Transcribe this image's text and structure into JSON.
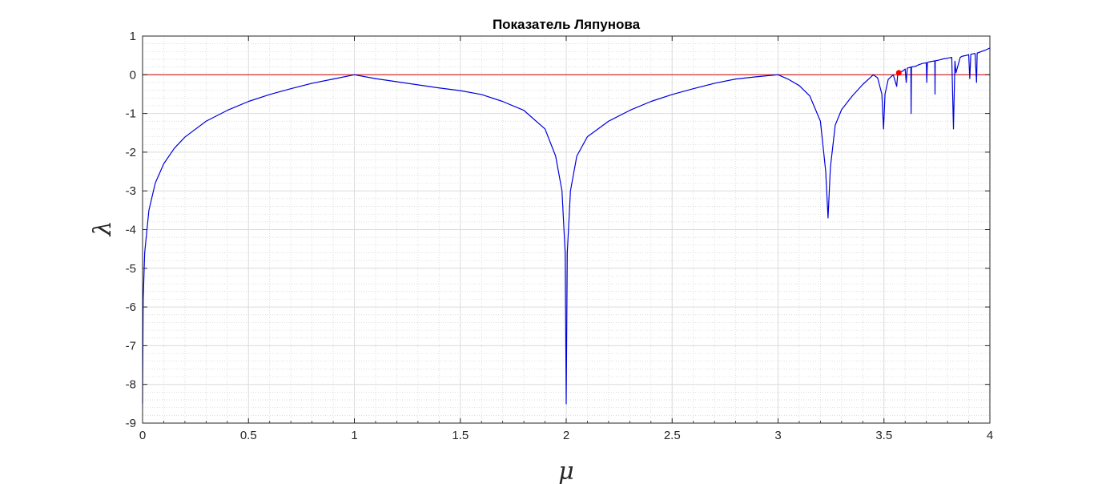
{
  "chart_data": {
    "type": "line",
    "title": "Показатель Ляпунова",
    "xlabel": "μ",
    "ylabel": "λ",
    "xlim": [
      0,
      4
    ],
    "ylim": [
      -9,
      1
    ],
    "xticks": [
      0,
      0.5,
      1,
      1.5,
      2,
      2.5,
      3,
      3.5,
      4
    ],
    "xtick_labels": [
      "0",
      "0.5",
      "1",
      "1.5",
      "2",
      "2.5",
      "3",
      "3.5",
      "4"
    ],
    "yticks": [
      1,
      0,
      -1,
      -2,
      -3,
      -4,
      -5,
      -6,
      -7,
      -8,
      -9
    ],
    "ytick_labels": [
      "1",
      "0",
      "-1",
      "-2",
      "-3",
      "-4",
      "-5",
      "-6",
      "-7",
      "-8",
      "-9"
    ],
    "grid": true,
    "minor_grid": true,
    "box": true,
    "series": [
      {
        "color": "#0000dd",
        "points": [
          [
            0.0,
            -8.5
          ],
          [
            0.003,
            -5.8
          ],
          [
            0.01,
            -4.6
          ],
          [
            0.03,
            -3.5
          ],
          [
            0.06,
            -2.8
          ],
          [
            0.1,
            -2.3
          ],
          [
            0.15,
            -1.9
          ],
          [
            0.2,
            -1.61
          ],
          [
            0.3,
            -1.2
          ],
          [
            0.4,
            -0.92
          ],
          [
            0.5,
            -0.69
          ],
          [
            0.6,
            -0.51
          ],
          [
            0.7,
            -0.36
          ],
          [
            0.8,
            -0.22
          ],
          [
            0.9,
            -0.11
          ],
          [
            1.0,
            0.0
          ],
          [
            1.1,
            -0.1
          ],
          [
            1.2,
            -0.18
          ],
          [
            1.3,
            -0.26
          ],
          [
            1.4,
            -0.34
          ],
          [
            1.5,
            -0.41
          ],
          [
            1.6,
            -0.51
          ],
          [
            1.7,
            -0.69
          ],
          [
            1.8,
            -0.92
          ],
          [
            1.9,
            -1.4
          ],
          [
            1.95,
            -2.1
          ],
          [
            1.98,
            -3.0
          ],
          [
            1.995,
            -4.6
          ],
          [
            2.0,
            -8.5
          ],
          [
            2.005,
            -4.6
          ],
          [
            2.02,
            -3.0
          ],
          [
            2.05,
            -2.1
          ],
          [
            2.1,
            -1.6
          ],
          [
            2.2,
            -1.2
          ],
          [
            2.3,
            -0.92
          ],
          [
            2.4,
            -0.69
          ],
          [
            2.5,
            -0.51
          ],
          [
            2.6,
            -0.36
          ],
          [
            2.7,
            -0.22
          ],
          [
            2.8,
            -0.11
          ],
          [
            2.9,
            -0.05
          ],
          [
            3.0,
            0.0
          ],
          [
            3.05,
            -0.12
          ],
          [
            3.1,
            -0.28
          ],
          [
            3.15,
            -0.55
          ],
          [
            3.2,
            -1.2
          ],
          [
            3.225,
            -2.5
          ],
          [
            3.236,
            -3.7
          ],
          [
            3.247,
            -2.4
          ],
          [
            3.27,
            -1.3
          ],
          [
            3.3,
            -0.9
          ],
          [
            3.35,
            -0.55
          ],
          [
            3.4,
            -0.25
          ],
          [
            3.44,
            -0.05
          ],
          [
            3.449,
            0.0
          ],
          [
            3.47,
            -0.08
          ],
          [
            3.49,
            -0.5
          ],
          [
            3.498,
            -1.4
          ],
          [
            3.505,
            -0.5
          ],
          [
            3.52,
            -0.12
          ],
          [
            3.544,
            0.0
          ],
          [
            3.56,
            -0.3
          ],
          [
            3.565,
            0.02
          ],
          [
            3.57,
            0.05
          ],
          [
            3.59,
            0.1
          ],
          [
            3.6,
            0.15
          ],
          [
            3.605,
            -0.2
          ],
          [
            3.61,
            0.17
          ],
          [
            3.627,
            0.2
          ],
          [
            3.628,
            -1.0
          ],
          [
            3.63,
            0.2
          ],
          [
            3.65,
            0.22
          ],
          [
            3.66,
            0.25
          ],
          [
            3.67,
            0.27
          ],
          [
            3.68,
            0.29
          ],
          [
            3.7,
            0.31
          ],
          [
            3.702,
            -0.2
          ],
          [
            3.705,
            0.32
          ],
          [
            3.72,
            0.34
          ],
          [
            3.74,
            0.36
          ],
          [
            3.741,
            -0.5
          ],
          [
            3.742,
            0.36
          ],
          [
            3.76,
            0.38
          ],
          [
            3.78,
            0.41
          ],
          [
            3.8,
            0.43
          ],
          [
            3.82,
            0.45
          ],
          [
            3.828,
            -1.4
          ],
          [
            3.835,
            0.35
          ],
          [
            3.84,
            0.05
          ],
          [
            3.86,
            0.45
          ],
          [
            3.87,
            0.48
          ],
          [
            3.89,
            0.5
          ],
          [
            3.9,
            0.52
          ],
          [
            3.905,
            -0.1
          ],
          [
            3.91,
            0.53
          ],
          [
            3.93,
            0.55
          ],
          [
            3.937,
            -0.2
          ],
          [
            3.94,
            0.56
          ],
          [
            3.96,
            0.6
          ],
          [
            3.98,
            0.64
          ],
          [
            4.0,
            0.69
          ]
        ]
      },
      {
        "color": "#cc0000",
        "points": [
          [
            0,
            0
          ],
          [
            4,
            0
          ]
        ]
      }
    ],
    "marker": {
      "x": 3.57,
      "y": 0.05,
      "color": "#ff0000"
    }
  }
}
